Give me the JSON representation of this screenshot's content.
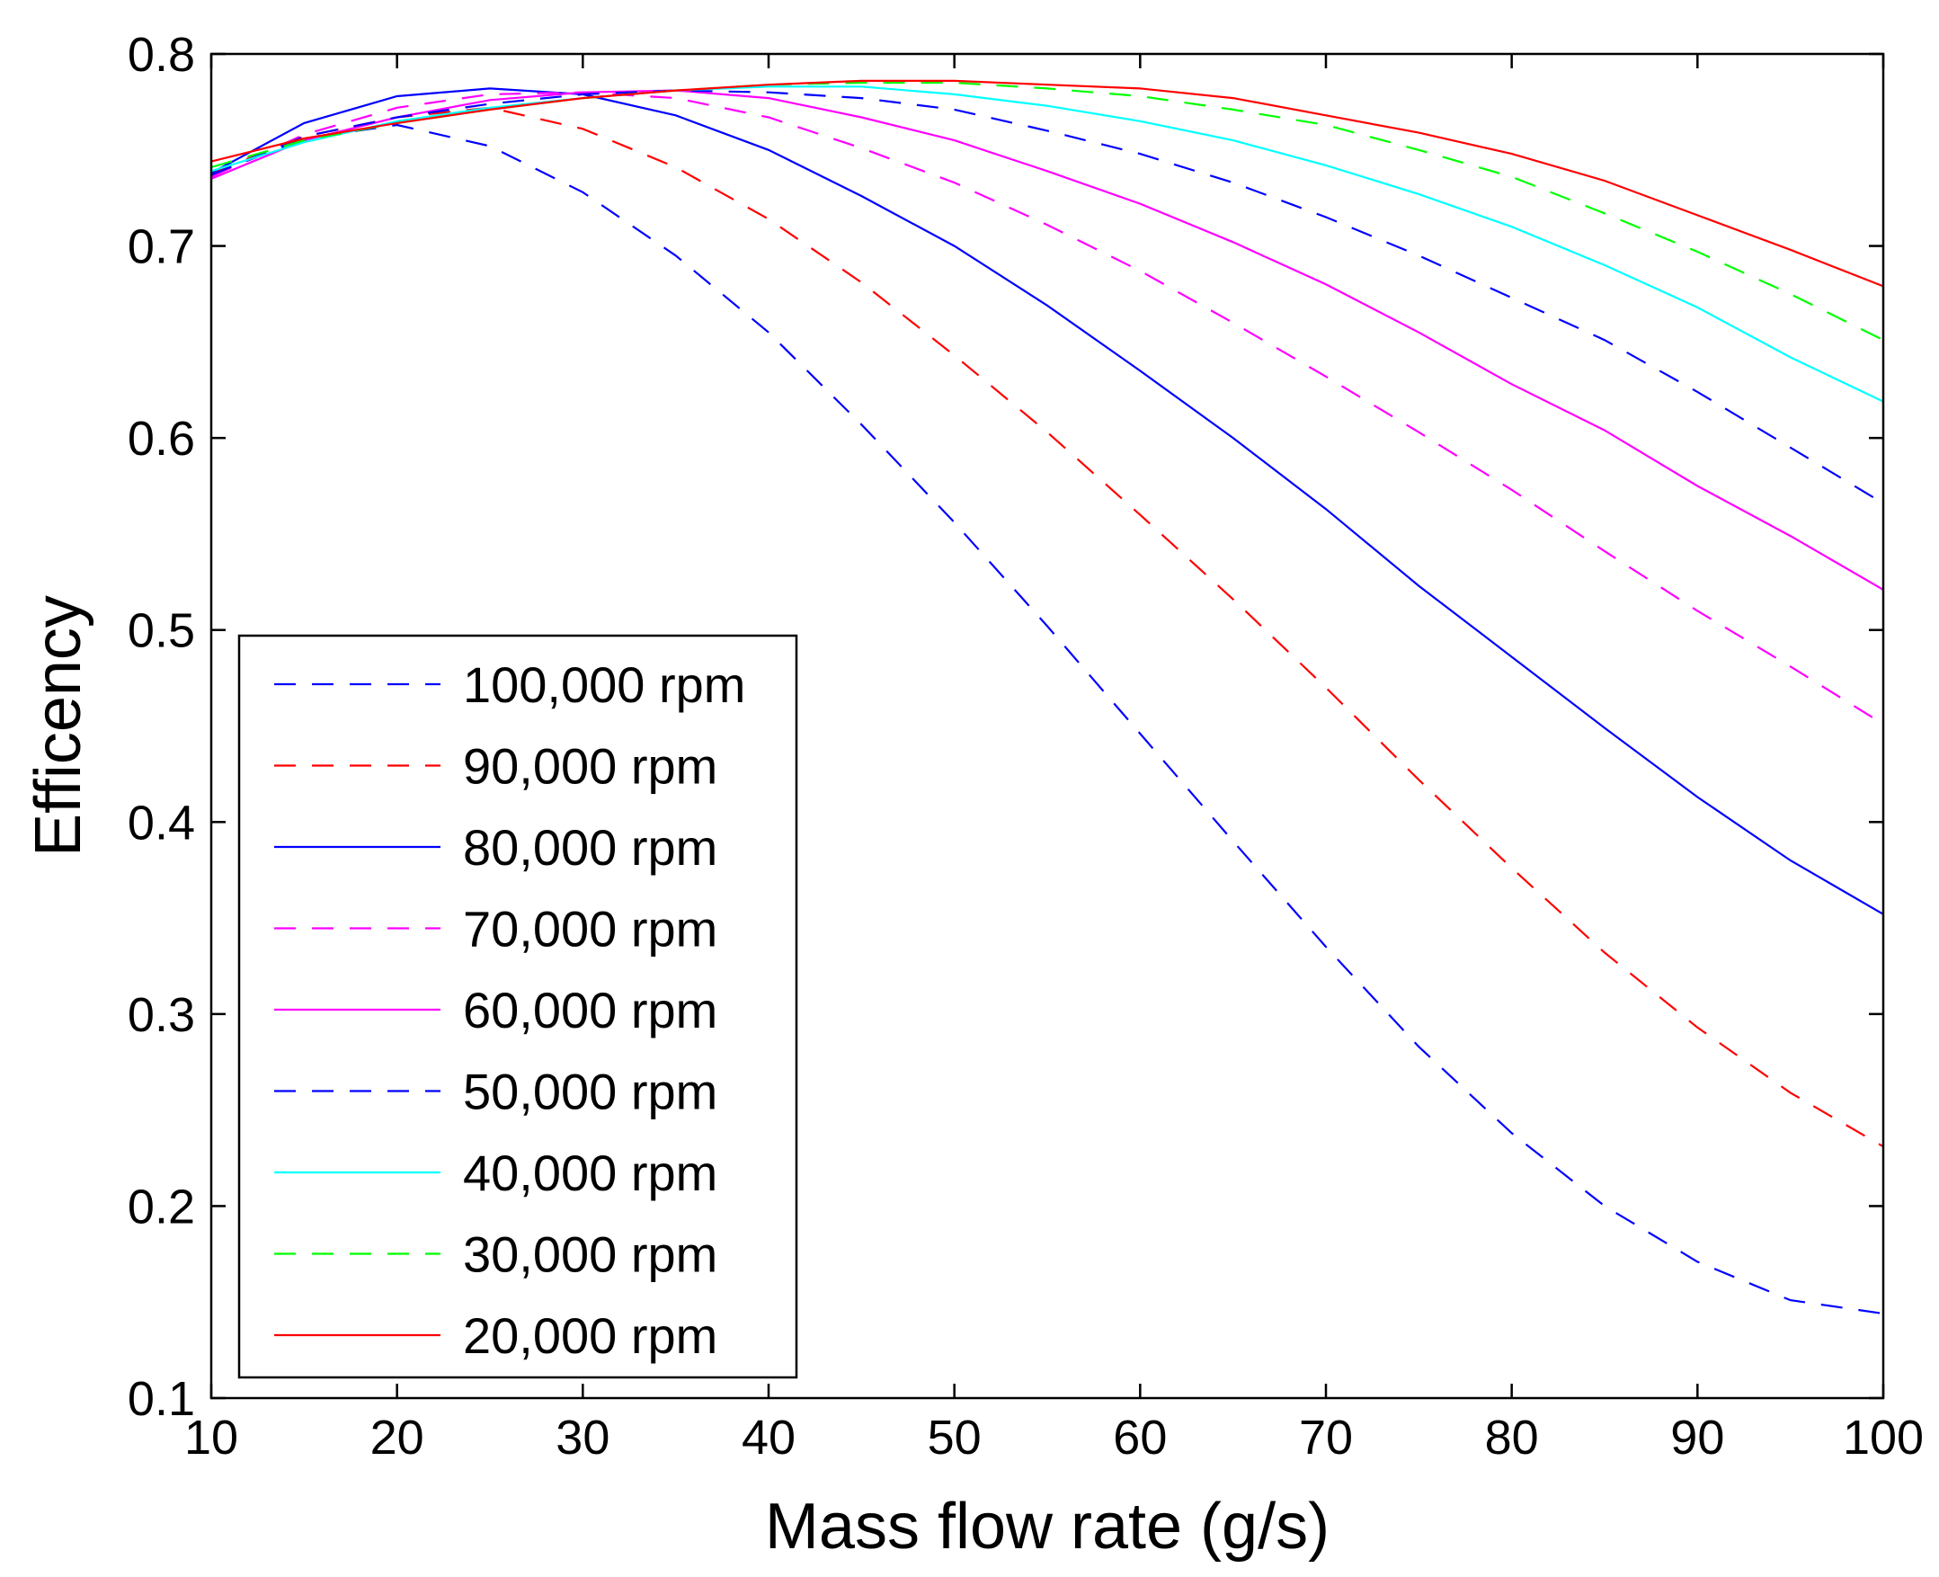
{
  "chart_data": {
    "type": "line",
    "title": "",
    "xlabel": "Mass flow rate (g/s)",
    "ylabel": "Efficency",
    "xlim": [
      10,
      100
    ],
    "ylim": [
      0.1,
      0.8
    ],
    "xticks": [
      10,
      20,
      30,
      40,
      50,
      60,
      70,
      80,
      90,
      100
    ],
    "yticks": [
      0.1,
      0.2,
      0.3,
      0.4,
      0.5,
      0.6,
      0.7,
      0.8
    ],
    "xtick_labels": [
      "10",
      "20",
      "30",
      "40",
      "50",
      "60",
      "70",
      "80",
      "90",
      "100"
    ],
    "ytick_labels": [
      "0.1",
      "0.2",
      "0.3",
      "0.4",
      "0.5",
      "0.6",
      "0.7",
      "0.8"
    ],
    "grid": false,
    "legend_position": "bottom-left",
    "x": [
      10,
      15,
      20,
      25,
      30,
      35,
      40,
      45,
      50,
      55,
      60,
      65,
      70,
      75,
      80,
      85,
      90,
      95,
      100
    ],
    "series": [
      {
        "name": "100,000 rpm",
        "color": "#0000ff",
        "dash": "dashed",
        "values": [
          0.737,
          0.756,
          0.763,
          0.752,
          0.728,
          0.695,
          0.655,
          0.607,
          0.556,
          0.502,
          0.446,
          0.39,
          0.335,
          0.283,
          0.238,
          0.2,
          0.171,
          0.151,
          0.144
        ]
      },
      {
        "name": "90,000 rpm",
        "color": "#ff0000",
        "dash": "dashed",
        "values": [
          0.738,
          0.757,
          0.767,
          0.772,
          0.761,
          0.741,
          0.714,
          0.681,
          0.643,
          0.603,
          0.56,
          0.516,
          0.47,
          0.422,
          0.376,
          0.332,
          0.293,
          0.259,
          0.231
        ]
      },
      {
        "name": "80,000 rpm",
        "color": "#0000ff",
        "dash": "solid",
        "values": [
          0.738,
          0.764,
          0.778,
          0.782,
          0.779,
          0.768,
          0.75,
          0.726,
          0.7,
          0.669,
          0.635,
          0.6,
          0.563,
          0.523,
          0.486,
          0.449,
          0.413,
          0.38,
          0.352
        ]
      },
      {
        "name": "70,000 rpm",
        "color": "#ff00ff",
        "dash": "dashed",
        "values": [
          0.736,
          0.758,
          0.772,
          0.779,
          0.78,
          0.777,
          0.767,
          0.751,
          0.733,
          0.711,
          0.687,
          0.66,
          0.632,
          0.603,
          0.573,
          0.541,
          0.51,
          0.481,
          0.451
        ]
      },
      {
        "name": "60,000 rpm",
        "color": "#ff00ff",
        "dash": "solid",
        "values": [
          0.735,
          0.755,
          0.767,
          0.776,
          0.78,
          0.781,
          0.777,
          0.767,
          0.755,
          0.739,
          0.722,
          0.702,
          0.68,
          0.655,
          0.628,
          0.604,
          0.575,
          0.549,
          0.521
        ]
      },
      {
        "name": "50,000 rpm",
        "color": "#0000ff",
        "dash": "dashed",
        "values": [
          0.737,
          0.757,
          0.767,
          0.774,
          0.779,
          0.781,
          0.78,
          0.777,
          0.771,
          0.76,
          0.748,
          0.733,
          0.715,
          0.695,
          0.673,
          0.651,
          0.624,
          0.595,
          0.566
        ]
      },
      {
        "name": "40,000 rpm",
        "color": "#00ffff",
        "dash": "solid",
        "values": [
          0.739,
          0.754,
          0.765,
          0.772,
          0.777,
          0.781,
          0.783,
          0.783,
          0.779,
          0.773,
          0.765,
          0.755,
          0.742,
          0.727,
          0.71,
          0.69,
          0.668,
          0.642,
          0.619
        ]
      },
      {
        "name": "30,000 rpm",
        "color": "#00ff00",
        "dash": "dashed",
        "values": [
          0.741,
          0.755,
          0.764,
          0.771,
          0.777,
          0.781,
          0.784,
          0.785,
          0.785,
          0.782,
          0.778,
          0.771,
          0.763,
          0.75,
          0.736,
          0.717,
          0.697,
          0.675,
          0.651
        ]
      },
      {
        "name": "20,000 rpm",
        "color": "#ff0000",
        "dash": "solid",
        "values": [
          0.744,
          0.756,
          0.764,
          0.771,
          0.777,
          0.781,
          0.784,
          0.786,
          0.786,
          0.784,
          0.782,
          0.777,
          0.768,
          0.759,
          0.748,
          0.734,
          0.716,
          0.698,
          0.679
        ]
      }
    ]
  }
}
